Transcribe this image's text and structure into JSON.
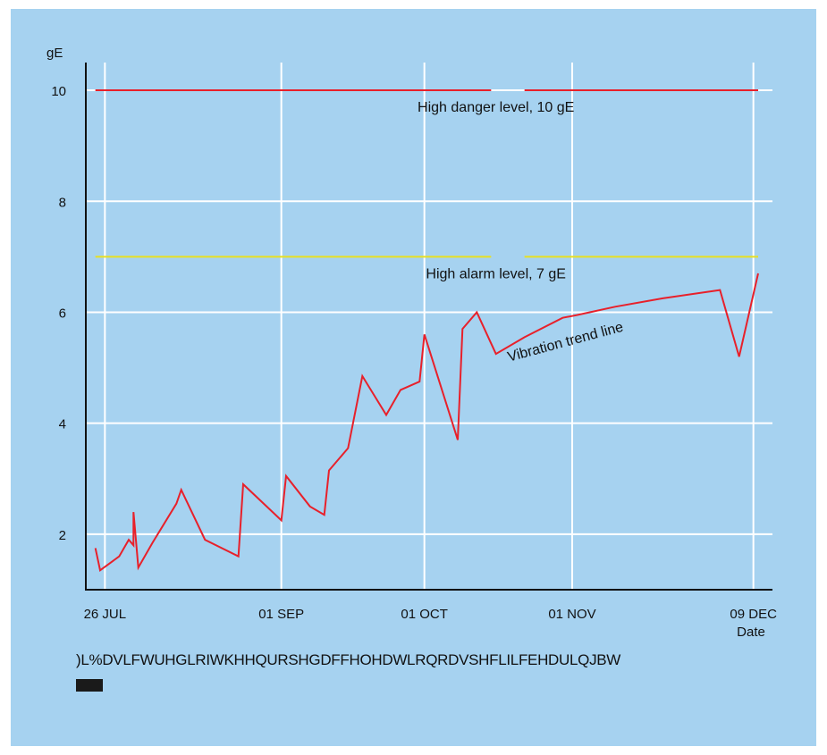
{
  "chart_data": {
    "type": "line",
    "ylabel": "gE",
    "xlabel": "Date",
    "ylim": [
      1.0,
      10.5
    ],
    "yticks": [
      2,
      4,
      6,
      8,
      10
    ],
    "ytick_labels": [
      "2",
      "4",
      "6",
      "8",
      "10"
    ],
    "xlim": [
      "2000-07-22",
      "2000-12-13"
    ],
    "xticks": [
      {
        "date": "2000-07-26",
        "label": "26 JUL"
      },
      {
        "date": "2000-09-01",
        "label": "01 SEP"
      },
      {
        "date": "2000-10-01",
        "label": "01 OCT"
      },
      {
        "date": "2000-11-01",
        "label": "01 NOV"
      },
      {
        "date": "2000-12-09",
        "label": "09 DEC"
      }
    ],
    "grid": true,
    "series": [
      {
        "name": "Vibration trend line",
        "color": "#e8202a",
        "points": [
          {
            "x": "2000-07-24",
            "y": 1.75
          },
          {
            "x": "2000-07-25",
            "y": 1.35
          },
          {
            "x": "2000-07-29",
            "y": 1.6
          },
          {
            "x": "2000-07-31",
            "y": 1.9
          },
          {
            "x": "2000-08-01",
            "y": 1.8
          },
          {
            "x": "2000-08-01",
            "y": 2.4
          },
          {
            "x": "2000-08-02",
            "y": 1.4
          },
          {
            "x": "2000-08-05",
            "y": 1.85
          },
          {
            "x": "2000-08-10",
            "y": 2.55
          },
          {
            "x": "2000-08-11",
            "y": 2.8
          },
          {
            "x": "2000-08-16",
            "y": 1.9
          },
          {
            "x": "2000-08-23",
            "y": 1.6
          },
          {
            "x": "2000-08-24",
            "y": 2.9
          },
          {
            "x": "2000-09-01",
            "y": 2.25
          },
          {
            "x": "2000-09-02",
            "y": 3.05
          },
          {
            "x": "2000-09-07",
            "y": 2.5
          },
          {
            "x": "2000-09-10",
            "y": 2.35
          },
          {
            "x": "2000-09-11",
            "y": 3.15
          },
          {
            "x": "2000-09-15",
            "y": 3.55
          },
          {
            "x": "2000-09-18",
            "y": 4.85
          },
          {
            "x": "2000-09-23",
            "y": 4.15
          },
          {
            "x": "2000-09-26",
            "y": 4.6
          },
          {
            "x": "2000-09-30",
            "y": 4.75
          },
          {
            "x": "2000-10-01",
            "y": 5.6
          },
          {
            "x": "2000-10-08",
            "y": 3.7
          },
          {
            "x": "2000-10-09",
            "y": 5.7
          },
          {
            "x": "2000-10-12",
            "y": 6.0
          },
          {
            "x": "2000-10-16",
            "y": 5.25
          },
          {
            "x": "2000-10-22",
            "y": 5.55
          },
          {
            "x": "2000-10-30",
            "y": 5.9
          },
          {
            "x": "2000-11-02",
            "y": 5.95
          },
          {
            "x": "2000-11-10",
            "y": 6.1
          },
          {
            "x": "2000-11-20",
            "y": 6.25
          },
          {
            "x": "2000-12-02",
            "y": 6.4
          },
          {
            "x": "2000-12-06",
            "y": 5.2
          },
          {
            "x": "2000-12-10",
            "y": 6.7
          }
        ]
      }
    ],
    "reference_lines": [
      {
        "name": "High danger level, 10 gE",
        "y": 10,
        "color": "#e8202a"
      },
      {
        "name": "High alarm level, 7 gE",
        "y": 7,
        "color": "#e8e020"
      }
    ],
    "annotations": [
      {
        "text": "Vibration trend line",
        "x": "2000-10-30",
        "y": 5.4
      }
    ]
  },
  "caption": ")L%DVLFWUHGLRIWKHHQURSHGDFFHOHDWLRQRDVSHFLILFEHDULQJBW"
}
